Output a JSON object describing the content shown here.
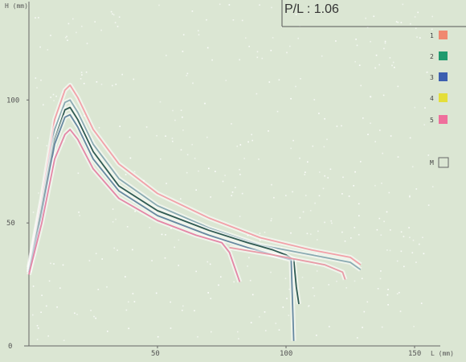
{
  "chart_data": {
    "type": "line",
    "title": "",
    "xlabel": "L (mm)",
    "ylabel": "H (mm)",
    "xlim": [
      0,
      160
    ],
    "ylim": [
      0,
      140
    ],
    "x_ticks": [
      "50",
      "100",
      "150"
    ],
    "y_ticks": [
      "50",
      "100"
    ],
    "y_origin_label": "0",
    "annotation": "P/L : 1.06",
    "grid": false,
    "legend_position": "right",
    "legend": [
      {
        "label": "1",
        "color": "#f08870"
      },
      {
        "label": "2",
        "color": "#1f9a6e"
      },
      {
        "label": "3",
        "color": "#3c5fb0"
      },
      {
        "label": "4",
        "color": "#e4de3a"
      },
      {
        "label": "5",
        "color": "#ef6f9c"
      },
      {
        "label": "M",
        "color": "#dbe6d3"
      }
    ],
    "series": [
      {
        "color": "#f2a0a8",
        "points": [
          [
            0,
            32
          ],
          [
            5,
            60
          ],
          [
            10,
            92
          ],
          [
            14,
            104
          ],
          [
            16,
            106
          ],
          [
            19,
            101
          ],
          [
            25,
            88
          ],
          [
            35,
            74
          ],
          [
            50,
            62
          ],
          [
            70,
            52
          ],
          [
            90,
            44
          ],
          [
            110,
            39
          ],
          [
            125,
            36
          ],
          [
            129,
            33
          ]
        ]
      },
      {
        "color": "#8aaab2",
        "points": [
          [
            0,
            31
          ],
          [
            5,
            58
          ],
          [
            10,
            88
          ],
          [
            14,
            99
          ],
          [
            16,
            100
          ],
          [
            19,
            95
          ],
          [
            25,
            82
          ],
          [
            35,
            68
          ],
          [
            50,
            57
          ],
          [
            70,
            48
          ],
          [
            90,
            41
          ],
          [
            110,
            37
          ],
          [
            125,
            34
          ],
          [
            129,
            31
          ]
        ]
      },
      {
        "color": "#2f5a52",
        "points": [
          [
            0,
            30
          ],
          [
            5,
            56
          ],
          [
            10,
            84
          ],
          [
            14,
            96
          ],
          [
            16,
            97
          ],
          [
            19,
            92
          ],
          [
            25,
            79
          ],
          [
            35,
            65
          ],
          [
            50,
            55
          ],
          [
            70,
            47
          ],
          [
            85,
            42
          ],
          [
            95,
            39
          ],
          [
            100,
            37
          ],
          [
            103,
            35
          ],
          [
            104,
            24
          ],
          [
            105,
            17
          ]
        ]
      },
      {
        "color": "#6688a0",
        "points": [
          [
            0,
            30
          ],
          [
            5,
            54
          ],
          [
            10,
            82
          ],
          [
            14,
            93
          ],
          [
            16,
            94
          ],
          [
            19,
            89
          ],
          [
            25,
            76
          ],
          [
            35,
            63
          ],
          [
            50,
            53
          ],
          [
            70,
            45
          ],
          [
            85,
            40
          ],
          [
            95,
            37
          ],
          [
            102,
            35
          ],
          [
            103,
            2
          ]
        ]
      },
      {
        "color": "#e486a6",
        "points": [
          [
            0,
            29
          ],
          [
            5,
            50
          ],
          [
            10,
            76
          ],
          [
            14,
            86
          ],
          [
            16,
            88
          ],
          [
            19,
            84
          ],
          [
            25,
            72
          ],
          [
            35,
            60
          ],
          [
            50,
            51
          ],
          [
            65,
            45
          ],
          [
            75,
            42
          ],
          [
            78,
            38
          ],
          [
            80,
            32
          ],
          [
            82,
            26
          ]
        ]
      },
      {
        "color": "#e89aa6",
        "points": [
          [
            78,
            40
          ],
          [
            95,
            37
          ],
          [
            105,
            35
          ],
          [
            115,
            33
          ],
          [
            122,
            30
          ],
          [
            123,
            27
          ]
        ]
      }
    ]
  }
}
